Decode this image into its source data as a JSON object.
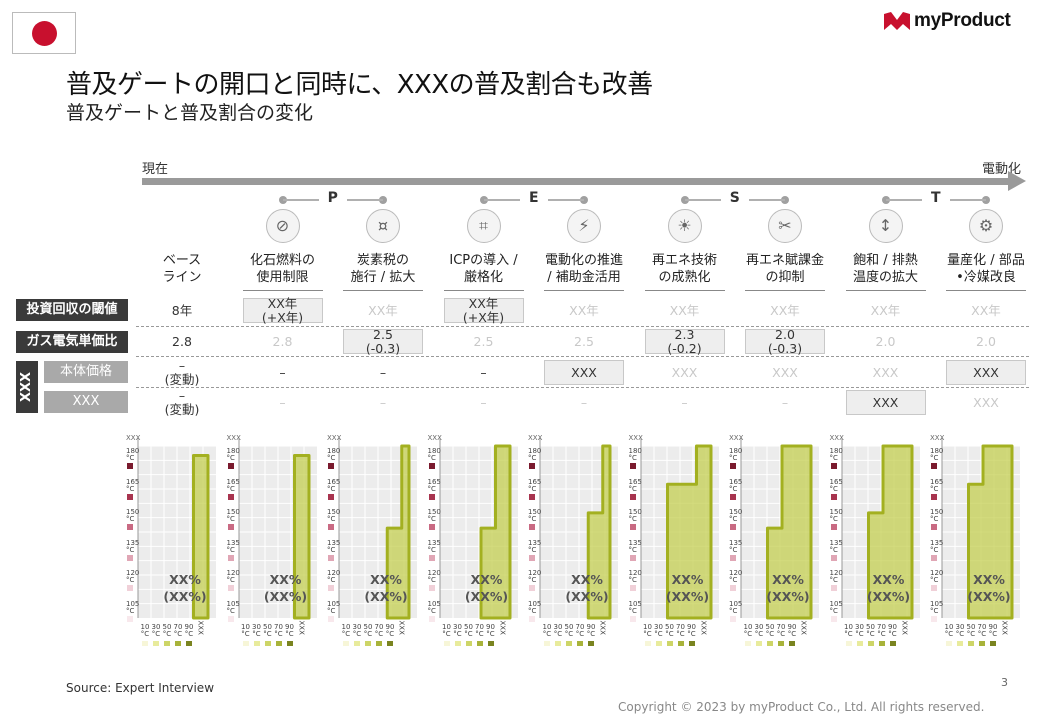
{
  "header": {
    "country_flag": "japan-flag",
    "logo_text": "myProduct",
    "title": "普及ゲートの開口と同時に、XXXの普及割合も改善",
    "subtitle": "普及ゲートと普及割合の変化"
  },
  "timeline": {
    "left": "現在",
    "right": "電動化",
    "pest": [
      "P",
      "E",
      "S",
      "T"
    ]
  },
  "columns": [
    {
      "label": "ベース\nライン",
      "icon": ""
    },
    {
      "label": "化石燃料の\n使用制限",
      "icon": "factory-ban-icon"
    },
    {
      "label": "炭素税の\n施行 / 拡大",
      "icon": "money-hand-icon"
    },
    {
      "label": "ICPの導入 /\n厳格化",
      "icon": "calculator-icon"
    },
    {
      "label": "電動化の推進\n/ 補助金活用",
      "icon": "plug-money-icon"
    },
    {
      "label": "再エネ技術\nの成熟化",
      "icon": "solar-panel-icon"
    },
    {
      "label": "再エネ賦課金\nの抑制",
      "icon": "scissors-document-icon"
    },
    {
      "label": "飽和 / 排熱\n温度の拡大",
      "icon": "thermometer-icon"
    },
    {
      "label": "量産化 / 部品\n•冷媒改良",
      "icon": "gear-chart-icon"
    }
  ],
  "row_labels": {
    "payback": "投資回収の閾値",
    "gas_price": "ガス電気単価比",
    "group": "XXX",
    "body_price": "本体価格",
    "xxx": "XXX"
  },
  "rows": {
    "payback": [
      {
        "text": "8年",
        "style": "dark"
      },
      {
        "text": "XX年\n(+X年)",
        "style": "box"
      },
      {
        "text": "XX年",
        "style": "light"
      },
      {
        "text": "XX年\n(+X年)",
        "style": "box"
      },
      {
        "text": "XX年",
        "style": "light"
      },
      {
        "text": "XX年",
        "style": "light"
      },
      {
        "text": "XX年",
        "style": "light"
      },
      {
        "text": "XX年",
        "style": "light"
      },
      {
        "text": "XX年",
        "style": "light"
      }
    ],
    "gas_price": [
      {
        "text": "2.8",
        "style": "dark"
      },
      {
        "text": "2.8",
        "style": "light"
      },
      {
        "text": "2.5\n(-0.3)",
        "style": "box"
      },
      {
        "text": "2.5",
        "style": "light"
      },
      {
        "text": "2.5",
        "style": "light"
      },
      {
        "text": "2.3\n(-0.2)",
        "style": "box"
      },
      {
        "text": "2.0\n(-0.3)",
        "style": "box"
      },
      {
        "text": "2.0",
        "style": "light"
      },
      {
        "text": "2.0",
        "style": "light"
      }
    ],
    "body_price": [
      {
        "text": "–\n(変動)",
        "style": "dark"
      },
      {
        "text": "–",
        "style": "dark"
      },
      {
        "text": "–",
        "style": "dark"
      },
      {
        "text": "–",
        "style": "dark"
      },
      {
        "text": "XXX",
        "style": "box"
      },
      {
        "text": "XXX",
        "style": "light"
      },
      {
        "text": "XXX",
        "style": "light"
      },
      {
        "text": "XXX",
        "style": "light"
      },
      {
        "text": "XXX",
        "style": "box"
      }
    ],
    "xxx": [
      {
        "text": "–\n(変動)",
        "style": "dark"
      },
      {
        "text": "–",
        "style": "light"
      },
      {
        "text": "–",
        "style": "light"
      },
      {
        "text": "–",
        "style": "light"
      },
      {
        "text": "–",
        "style": "light"
      },
      {
        "text": "–",
        "style": "light"
      },
      {
        "text": "–",
        "style": "light"
      },
      {
        "text": "XXX",
        "style": "box"
      },
      {
        "text": "XXX",
        "style": "light"
      }
    ]
  },
  "mini_charts": {
    "corner_label": "XXX",
    "y_ticks": [
      "180\n°C",
      "165\n°C",
      "150\n°C",
      "135\n°C",
      "120\n°C",
      "105\n°C"
    ],
    "y_colors": [
      "#7a1a2e",
      "#a8344f",
      "#c96a83",
      "#e0a6b5",
      "#f0d0d8",
      "#f8e8ec"
    ],
    "x_ticks": [
      "10\n°C",
      "30\n°C",
      "50\n°C",
      "70\n°C",
      "90\n°C",
      "XXX"
    ],
    "x_colors": [
      "#f7f6d8",
      "#e8eb9c",
      "#cdd567",
      "#a8b33a",
      "#7a8420",
      "#4f5614"
    ],
    "percent_label": "XX%\n(XX%)",
    "fill_color": "#c4cf52",
    "line_color": "#a3b020",
    "ylim": [
      95,
      185
    ],
    "steps": [
      [
        {
          "x_from": 70,
          "x_to": 90,
          "y": 180
        }
      ],
      [
        {
          "x_from": 70,
          "x_to": 90,
          "y": 180
        }
      ],
      [
        {
          "x_from": 60,
          "x_to": 80,
          "y": 142
        },
        {
          "x_from": 80,
          "x_to": 90,
          "y": 185
        }
      ],
      [
        {
          "x_from": 50,
          "x_to": 70,
          "y": 142
        },
        {
          "x_from": 70,
          "x_to": 90,
          "y": 185
        }
      ],
      [
        {
          "x_from": 60,
          "x_to": 80,
          "y": 150
        },
        {
          "x_from": 80,
          "x_to": 90,
          "y": 185
        }
      ],
      [
        {
          "x_from": 30,
          "x_to": 70,
          "y": 165
        },
        {
          "x_from": 70,
          "x_to": 90,
          "y": 185
        }
      ],
      [
        {
          "x_from": 30,
          "x_to": 50,
          "y": 142
        },
        {
          "x_from": 50,
          "x_to": 90,
          "y": 185
        }
      ],
      [
        {
          "x_from": 30,
          "x_to": 50,
          "y": 150
        },
        {
          "x_from": 50,
          "x_to": 90,
          "y": 185
        }
      ],
      [
        {
          "x_from": 30,
          "x_to": 50,
          "y": 165
        },
        {
          "x_from": 50,
          "x_to": 90,
          "y": 185
        }
      ]
    ]
  },
  "footer": {
    "source": "Source: Expert Interview",
    "page_number": "3",
    "copyright": "Copyright © 2023 by myProduct Co., Ltd.  All rights reserved."
  }
}
